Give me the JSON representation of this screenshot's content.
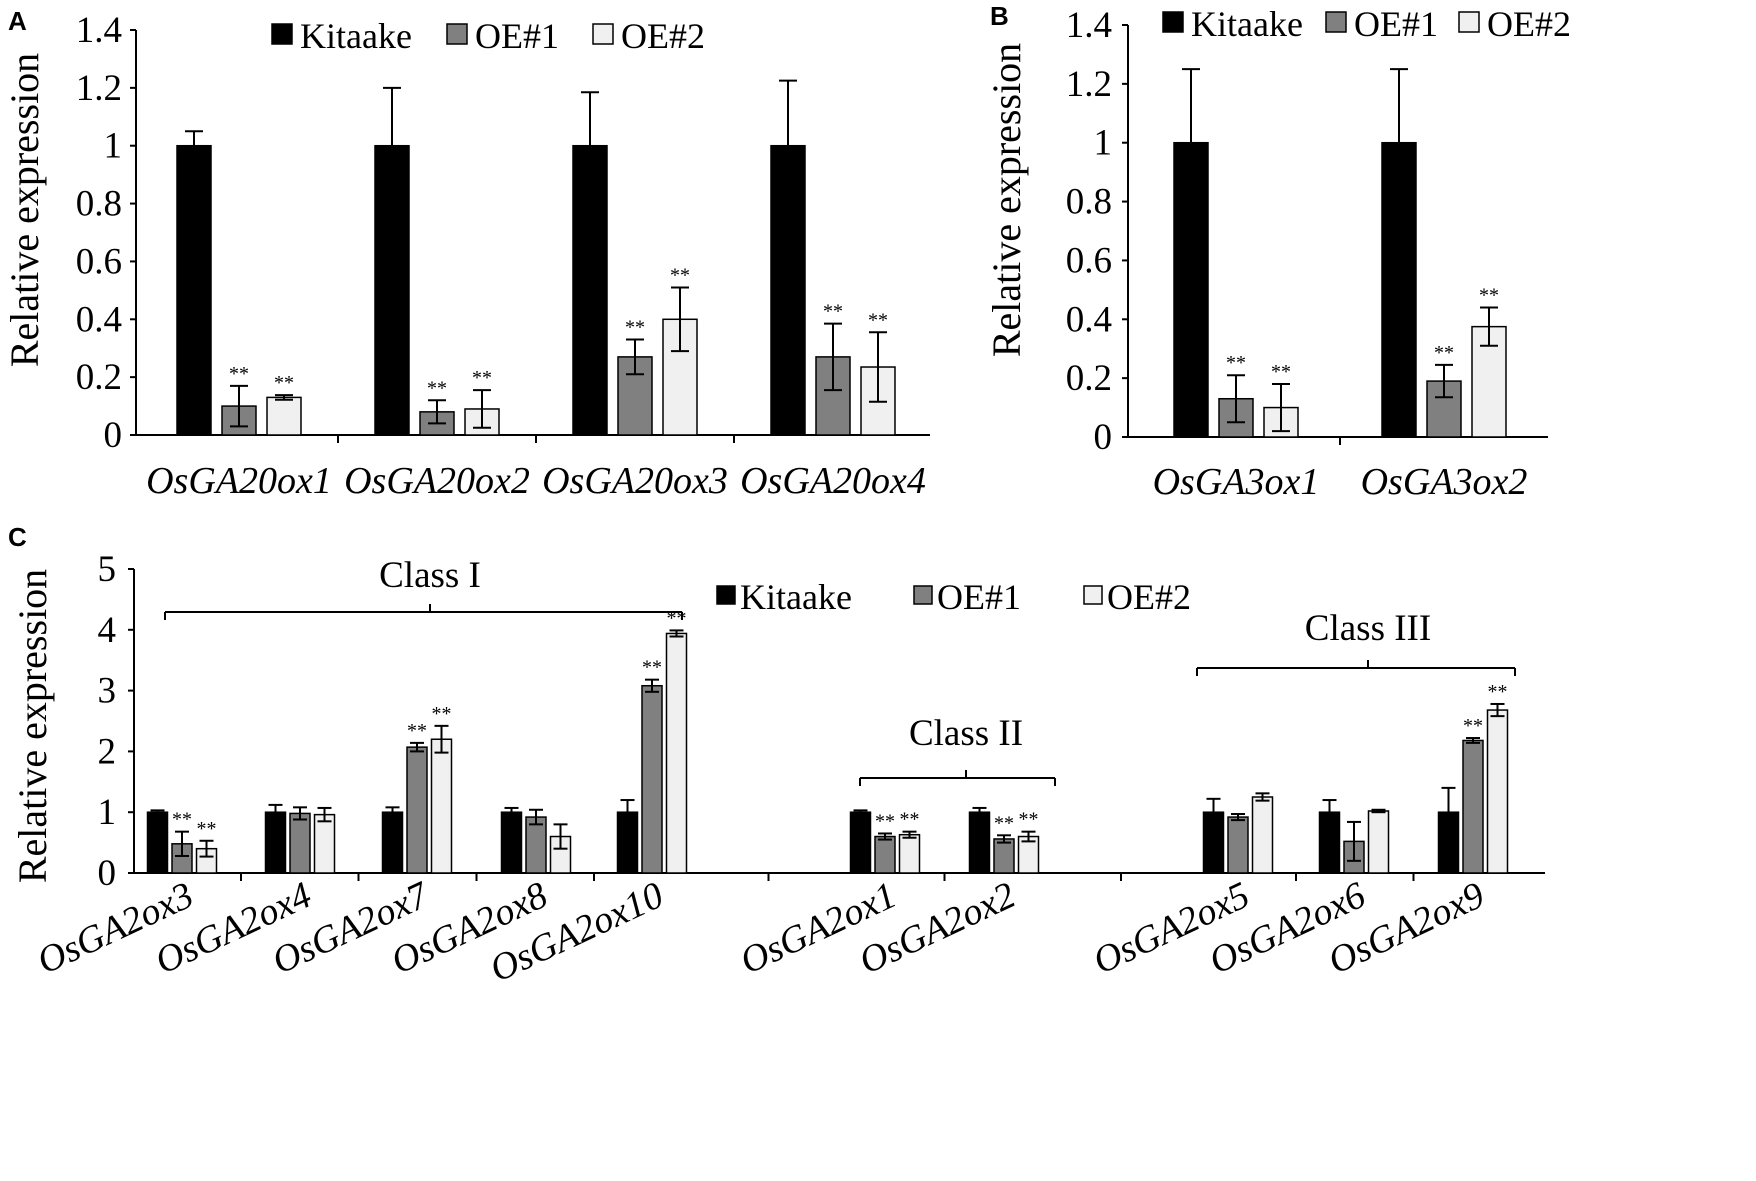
{
  "chart_data": [
    {
      "panel": "A",
      "type": "bar",
      "ylabel": "Relative  expression",
      "ylim": [
        0,
        1.4
      ],
      "yticks": [
        "0",
        "0.2",
        "0.4",
        "0.6",
        "0.8",
        "1",
        "1.2",
        "1.4"
      ],
      "legend": [
        "Kitaake",
        "OE#1",
        "OE#2"
      ],
      "categories": [
        "OsGA20ox1",
        "OsGA20ox2",
        "OsGA20ox3",
        "OsGA20ox4"
      ],
      "series": [
        {
          "name": "Kitaake",
          "color": "#000000",
          "values": [
            1,
            1,
            1,
            1
          ],
          "errors": [
            0.05,
            0.2,
            0.185,
            0.225
          ],
          "marks": [
            "",
            "",
            "",
            ""
          ]
        },
        {
          "name": "OE#1",
          "color": "#808080",
          "values": [
            0.1,
            0.08,
            0.27,
            0.27
          ],
          "errors": [
            0.07,
            0.04,
            0.06,
            0.115
          ],
          "marks": [
            "**",
            "**",
            "**",
            "**"
          ]
        },
        {
          "name": "OE#2",
          "color": "#f0f0f0",
          "values": [
            0.13,
            0.09,
            0.4,
            0.235
          ],
          "errors": [
            0.008,
            0.065,
            0.11,
            0.12
          ],
          "marks": [
            "**",
            "**",
            "**",
            "**"
          ]
        }
      ]
    },
    {
      "panel": "B",
      "type": "bar",
      "ylabel": "Relative  expression",
      "ylim": [
        0,
        1.4
      ],
      "yticks": [
        "0",
        "0.2",
        "0.4",
        "0.6",
        "0.8",
        "1",
        "1.2",
        "1.4"
      ],
      "legend": [
        "Kitaake",
        "OE#1",
        "OE#2"
      ],
      "categories": [
        "OsGA3ox1",
        "OsGA3ox2"
      ],
      "series": [
        {
          "name": "Kitaake",
          "color": "#000000",
          "values": [
            1,
            1
          ],
          "errors": [
            0.25,
            0.25
          ],
          "marks": [
            "",
            ""
          ]
        },
        {
          "name": "OE#1",
          "color": "#808080",
          "values": [
            0.13,
            0.19
          ],
          "errors": [
            0.08,
            0.055
          ],
          "marks": [
            "**",
            "**"
          ]
        },
        {
          "name": "OE#2",
          "color": "#f0f0f0",
          "values": [
            0.1,
            0.375
          ],
          "errors": [
            0.08,
            0.065
          ],
          "marks": [
            "**",
            "**"
          ]
        }
      ]
    },
    {
      "panel": "C",
      "type": "bar",
      "ylabel": "Relative  expression",
      "ylim": [
        0,
        5
      ],
      "yticks": [
        "0",
        "1",
        "2",
        "3",
        "4",
        "5"
      ],
      "legend": [
        "Kitaake",
        "OE#1",
        "OE#2"
      ],
      "categories": [
        "OsGA2ox3",
        "OsGA2ox4",
        "OsGA2ox7",
        "OsGA2ox8",
        "OsGA2ox10",
        "OsGA2ox1",
        "OsGA2ox2",
        "OsGA2ox5",
        "OsGA2ox6",
        "OsGA2ox9"
      ],
      "groups": [
        {
          "label": "Class I",
          "from": 0,
          "to": 4
        },
        {
          "label": "Class II",
          "from": 5,
          "to": 6
        },
        {
          "label": "Class III",
          "from": 7,
          "to": 9
        }
      ],
      "series": [
        {
          "name": "Kitaake",
          "color": "#000000",
          "values": [
            1,
            1,
            1,
            1,
            1,
            1,
            1,
            1,
            1,
            1
          ],
          "errors": [
            0.03,
            0.12,
            0.08,
            0.07,
            0.2,
            0.03,
            0.07,
            0.22,
            0.2,
            0.4
          ],
          "marks": [
            "",
            "",
            "",
            "",
            "",
            "",
            "",
            "",
            "",
            ""
          ]
        },
        {
          "name": "OE#1",
          "color": "#808080",
          "values": [
            0.48,
            0.98,
            2.07,
            0.92,
            3.08,
            0.6,
            0.56,
            0.92,
            0.52,
            2.18
          ],
          "errors": [
            0.2,
            0.1,
            0.07,
            0.12,
            0.1,
            0.05,
            0.06,
            0.05,
            0.32,
            0.04
          ],
          "marks": [
            "**",
            "",
            "**",
            "",
            "**",
            "**",
            "**",
            "",
            "",
            "**"
          ]
        },
        {
          "name": "OE#2",
          "color": "#f0f0f0",
          "values": [
            0.4,
            0.96,
            2.2,
            0.6,
            3.94,
            0.63,
            0.6,
            1.25,
            1.02,
            2.68
          ],
          "errors": [
            0.13,
            0.11,
            0.22,
            0.2,
            0.05,
            0.05,
            0.08,
            0.06,
            0.02,
            0.1
          ],
          "marks": [
            "**",
            "",
            "**",
            "",
            "**",
            "**",
            "**",
            "",
            "",
            "**"
          ]
        }
      ]
    }
  ]
}
